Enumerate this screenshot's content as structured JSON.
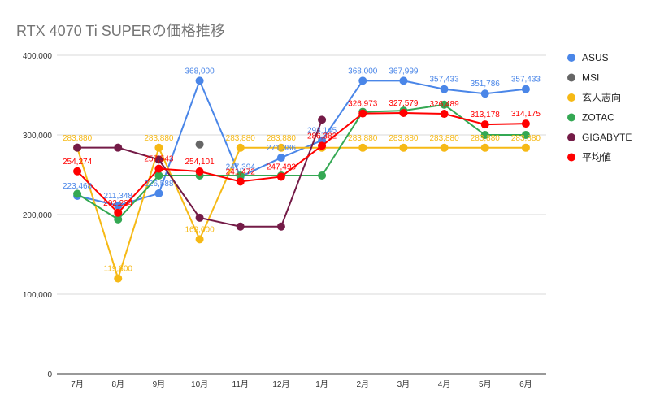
{
  "chart_data": {
    "type": "line",
    "title": "RTX 4070 Ti SUPERの価格推移",
    "xlabel": "",
    "ylabel": "",
    "categories": [
      "7月",
      "8月",
      "9月",
      "10月",
      "11月",
      "12月",
      "1月",
      "2月",
      "3月",
      "4月",
      "5月",
      "6月"
    ],
    "ylim": [
      0,
      400000
    ],
    "yticks": [
      0,
      100000,
      200000,
      300000,
      400000
    ],
    "ytick_labels": [
      "0",
      "100,000",
      "200,000",
      "300,000",
      "400,000"
    ],
    "grid": true,
    "legend_position": "right",
    "series": [
      {
        "name": "ASUS",
        "color": "#4a86e8",
        "values": [
          223468,
          211348,
          226588,
          368000,
          247394,
          271386,
          293145,
          368000,
          367999,
          357433,
          351786,
          357433
        ],
        "labels": [
          "223,468",
          "211,348",
          "226,588",
          "368,000",
          "247,394",
          "271,386",
          "293,145",
          "368,000",
          "367,999",
          "357,433",
          "351,786",
          "357,433"
        ]
      },
      {
        "name": "MSI",
        "color": "#666666",
        "values": [
          null,
          null,
          null,
          288000,
          null,
          null,
          null,
          null,
          null,
          null,
          null,
          null
        ],
        "labels": [
          null,
          null,
          null,
          null,
          null,
          null,
          null,
          null,
          null,
          null,
          null,
          null
        ]
      },
      {
        "name": "玄人志向",
        "color": "#f6b915",
        "values": [
          283880,
          119800,
          283880,
          169000,
          283880,
          283880,
          283880,
          283880,
          283880,
          283880,
          283880,
          283880
        ],
        "labels": [
          "283,880",
          "119,800",
          "283,880",
          "169,000",
          "283,880",
          "283,880",
          null,
          "283,880",
          "283,880",
          "283,880",
          "283,880",
          "283,880"
        ]
      },
      {
        "name": "ZOTAC",
        "color": "#34a853",
        "values": [
          226000,
          194000,
          249000,
          249000,
          249000,
          249000,
          249000,
          329000,
          330500,
          338000,
          300000,
          300000
        ],
        "labels": [
          null,
          null,
          null,
          null,
          null,
          null,
          null,
          null,
          null,
          null,
          null,
          null
        ]
      },
      {
        "name": "GIGABYTE",
        "color": "#741b47",
        "values": [
          284000,
          284000,
          269000,
          196000,
          185000,
          185000,
          319000,
          null,
          null,
          null,
          null,
          null
        ],
        "labels": [
          null,
          null,
          null,
          null,
          null,
          null,
          null,
          null,
          null,
          null,
          null,
          null
        ]
      },
      {
        "name": "平均値",
        "color": "#ff0000",
        "values": [
          254274,
          202234,
          257543,
          254101,
          241472,
          247493,
          286382,
          326973,
          327579,
          326489,
          313178,
          314175
        ],
        "labels": [
          "254,274",
          "202,234",
          "257,543",
          "254,101",
          "241,472",
          "247,493",
          "286,382",
          "326,973",
          "327,579",
          "326,489",
          "313,178",
          "314,175"
        ]
      }
    ]
  }
}
